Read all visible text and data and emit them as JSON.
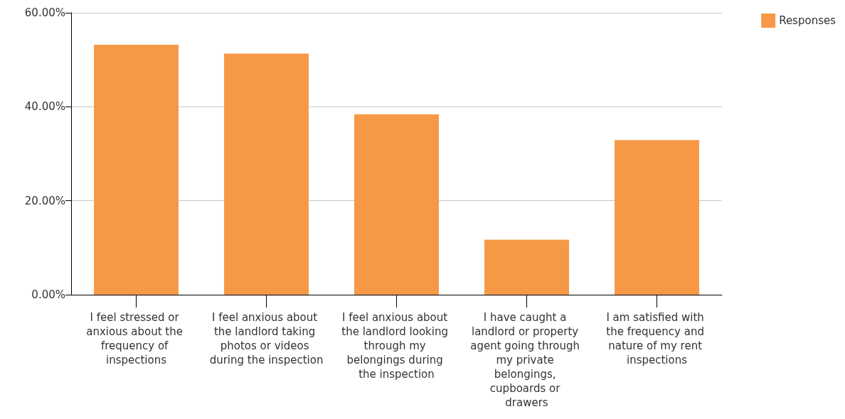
{
  "chart_data": {
    "type": "bar",
    "categories": [
      "I feel stressed or anxious about the frequency of inspections",
      "I feel anxious about the landlord taking photos or videos during the inspection",
      "I feel anxious about the landlord looking through my belongings during the inspection",
      "I have caught a landlord or property agent going through my private belongings, cupboards or drawers",
      "I am satisfied with the frequency and nature of my rent inspections"
    ],
    "series": [
      {
        "name": "Responses",
        "color": "#f79846",
        "values": [
          53.2,
          51.3,
          38.4,
          11.7,
          32.9
        ]
      }
    ],
    "ylim": [
      0,
      60
    ],
    "yticks": [
      {
        "value": 0,
        "label": "0.00%"
      },
      {
        "value": 20,
        "label": "20.00%"
      },
      {
        "value": 40,
        "label": "40.00%"
      },
      {
        "value": 60,
        "label": "60.00%"
      }
    ],
    "grid": "y",
    "legend": "top right"
  }
}
